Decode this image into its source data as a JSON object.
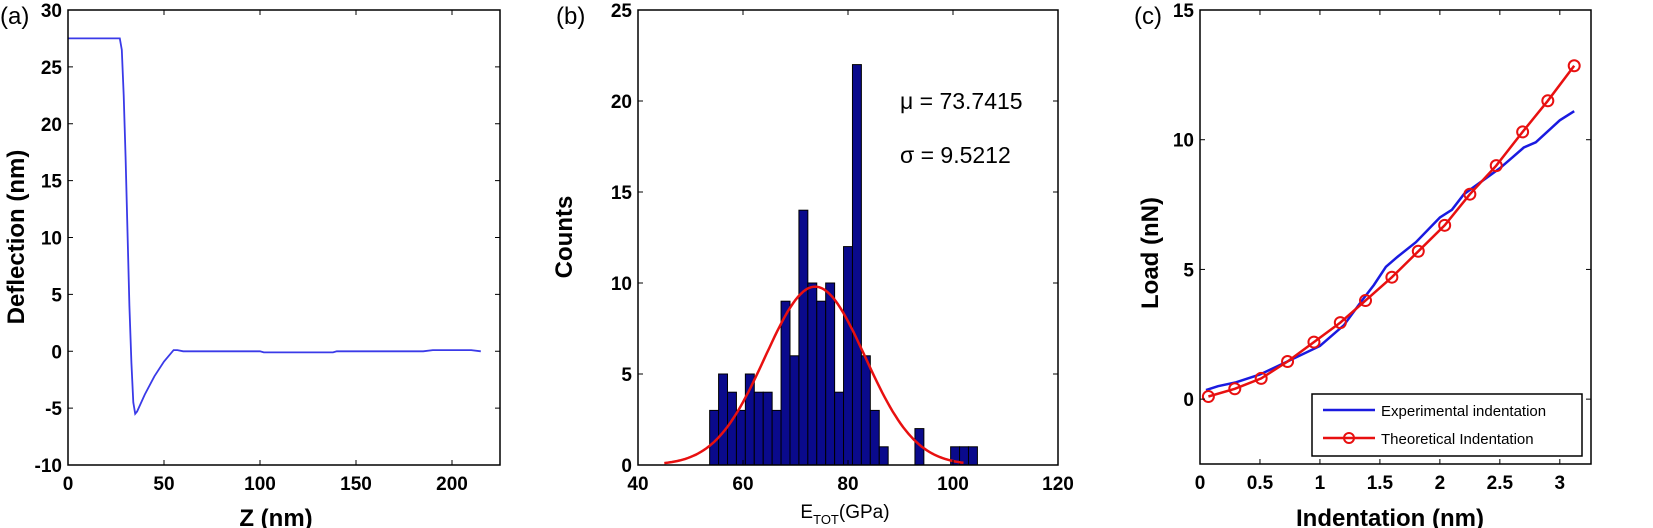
{
  "chart_data": [
    {
      "type": "line",
      "panel_label": "(a)",
      "xlabel": "Z (nm)",
      "ylabel": "Deflection (nm)",
      "xlim": [
        0,
        225
      ],
      "ylim": [
        -10,
        30
      ],
      "xticks": [
        0,
        50,
        100,
        150,
        200
      ],
      "yticks": [
        -10,
        -5,
        0,
        5,
        10,
        15,
        20,
        25,
        30
      ],
      "grid": false,
      "series": [
        {
          "name": "deflection",
          "color": "#3a3ae8",
          "x": [
            0,
            27,
            28,
            29,
            30,
            31,
            32,
            33,
            34,
            35,
            36,
            40,
            45,
            50,
            55,
            57,
            60,
            100,
            102,
            138,
            140,
            185,
            190,
            210,
            215
          ],
          "y": [
            27.5,
            27.5,
            26.5,
            22.5,
            17,
            10.5,
            4,
            -1,
            -4.5,
            -5.5,
            -5.3,
            -3.8,
            -2.2,
            -0.9,
            0.1,
            0.1,
            0,
            0,
            -0.1,
            -0.1,
            0,
            0,
            0.1,
            0.1,
            0
          ]
        }
      ]
    },
    {
      "type": "bar",
      "panel_label": "(b)",
      "xlabel_main": "E",
      "xlabel_sub": "TOT",
      "xlabel_rest": "(GPa)",
      "ylabel": "Counts",
      "xlim": [
        40,
        120
      ],
      "ylim": [
        0,
        25
      ],
      "xticks": [
        40,
        60,
        80,
        100,
        120
      ],
      "yticks": [
        0,
        5,
        10,
        15,
        20,
        25
      ],
      "grid": false,
      "bar_color": "#0a0a8c",
      "bin_start": 53.65,
      "bin_width": 1.7,
      "counts": [
        3,
        5,
        4,
        3,
        5,
        4,
        4,
        3,
        9,
        6,
        14,
        10,
        9,
        10,
        4,
        12,
        22,
        6,
        3,
        1,
        0,
        0,
        0,
        2,
        0,
        0,
        0,
        1,
        1,
        1
      ],
      "fit": {
        "type": "normal",
        "mean": 73.7415,
        "std": 9.5212,
        "peak": 9.8,
        "range": [
          45,
          102
        ],
        "color": "#e81010"
      },
      "annotations": {
        "mu": "μ = 73.7415",
        "sigma": "σ = 9.5212"
      }
    },
    {
      "type": "line",
      "panel_label": "(c)",
      "xlabel": "Indentation (nm)",
      "ylabel": "Load (nN)",
      "xlim": [
        0,
        3.26
      ],
      "ylim": [
        -2.5,
        15
      ],
      "xticks": [
        0,
        0.5,
        1,
        1.5,
        2,
        2.5,
        3
      ],
      "yticks": [
        0,
        5,
        10,
        15
      ],
      "grid": false,
      "legend_position": "bottom-right",
      "series": [
        {
          "name": "Experimental indentation",
          "color": "#1a1ae0",
          "marker": "none",
          "x": [
            0.05,
            0.15,
            0.3,
            0.5,
            0.75,
            1.0,
            1.2,
            1.35,
            1.45,
            1.55,
            1.65,
            1.8,
            2.0,
            2.1,
            2.2,
            2.35,
            2.5,
            2.6,
            2.7,
            2.8,
            3.0,
            3.12
          ],
          "y": [
            0.35,
            0.5,
            0.65,
            0.95,
            1.5,
            2.05,
            2.85,
            3.8,
            4.4,
            5.1,
            5.5,
            6.05,
            7.0,
            7.3,
            7.9,
            8.4,
            8.9,
            9.3,
            9.7,
            9.9,
            10.75,
            11.1
          ]
        },
        {
          "name": "Theoretical Indentation",
          "color": "#e81010",
          "marker": "circle",
          "x": [
            0.07,
            0.29,
            0.51,
            0.73,
            0.95,
            1.17,
            1.38,
            1.6,
            1.82,
            2.04,
            2.25,
            2.47,
            2.69,
            2.9,
            3.12
          ],
          "y": [
            0.1,
            0.4,
            0.8,
            1.45,
            2.2,
            2.95,
            3.8,
            4.7,
            5.7,
            6.7,
            7.9,
            9.0,
            10.3,
            11.5,
            12.85
          ]
        }
      ]
    }
  ]
}
